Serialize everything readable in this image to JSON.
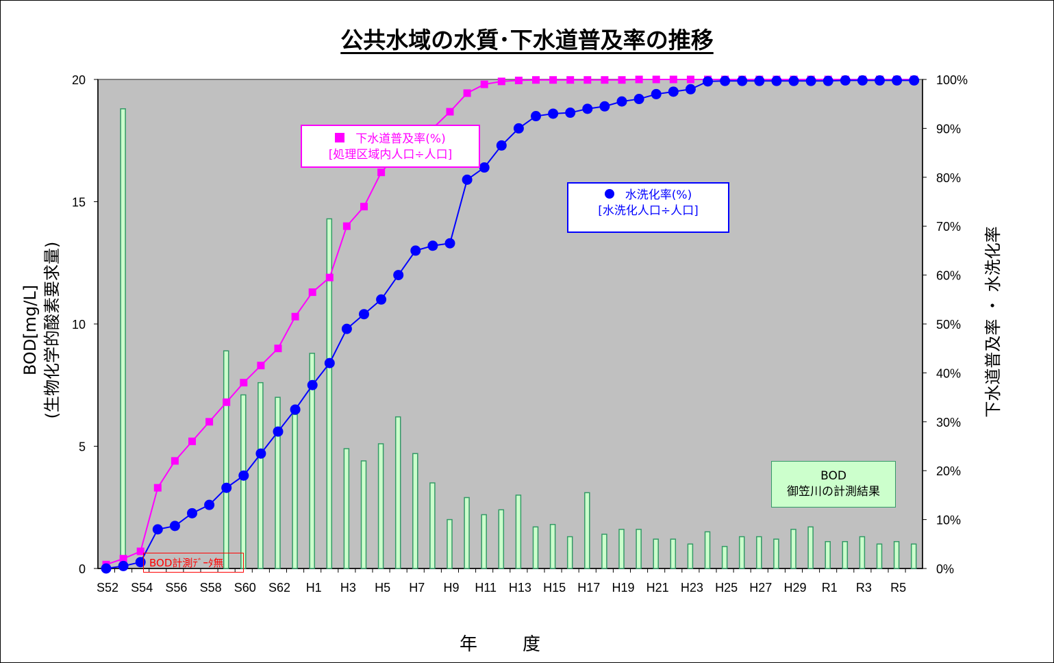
{
  "chart_data": {
    "type": "bar+line",
    "title": "公共水域の水質･下水道普及率の推移",
    "xlabel": "年　度",
    "ylabel_left": [
      "BOD[mg/L]",
      "(生物化学的酸素要求量)"
    ],
    "ylabel_right": "下水道普及率 ・ 水洗化率",
    "ylim_left": [
      0,
      20
    ],
    "ylim_right": [
      0,
      100
    ],
    "left_ticks": [
      "0",
      "5",
      "10",
      "15",
      "20"
    ],
    "right_ticks": [
      "0%",
      "10%",
      "20%",
      "30%",
      "40%",
      "50%",
      "60%",
      "70%",
      "80%",
      "90%",
      "100%"
    ],
    "categories": [
      "S52",
      "S53",
      "S54",
      "S55",
      "S56",
      "S57",
      "S58",
      "S59",
      "S60",
      "S61",
      "S62",
      "S63",
      "H1",
      "H2",
      "H3",
      "H4",
      "H5",
      "H6",
      "H7",
      "H8",
      "H9",
      "H10",
      "H11",
      "H12",
      "H13",
      "H14",
      "H15",
      "H16",
      "H17",
      "H18",
      "H19",
      "H20",
      "H21",
      "H22",
      "H23",
      "H24",
      "H25",
      "H26",
      "H27",
      "H28",
      "H29",
      "H30",
      "R1",
      "R2",
      "R3",
      "R4",
      "R5",
      "R6"
    ],
    "x_tick_labels": [
      "S52",
      "S54",
      "S56",
      "S58",
      "S60",
      "S62",
      "H1",
      "H3",
      "H5",
      "H7",
      "H9",
      "H11",
      "H13",
      "H15",
      "H17",
      "H19",
      "H21",
      "H23",
      "H25",
      "H27",
      "H29",
      "R1",
      "R3",
      "R5"
    ],
    "series": [
      {
        "name": "BOD 御笠川の計測結果",
        "type": "bar",
        "axis": "left",
        "color": "#ccffcc",
        "edge": "#339966",
        "values": [
          null,
          18.8,
          null,
          null,
          null,
          null,
          null,
          8.9,
          7.1,
          7.6,
          7.0,
          6.3,
          8.8,
          14.3,
          4.9,
          4.4,
          5.1,
          6.2,
          4.7,
          3.5,
          2.0,
          2.9,
          2.2,
          2.4,
          3.0,
          1.7,
          1.8,
          1.3,
          3.1,
          1.4,
          1.6,
          1.6,
          1.2,
          1.2,
          1.0,
          1.5,
          0.9,
          1.3,
          1.3,
          1.2,
          1.6,
          1.7,
          1.1,
          1.1,
          1.3,
          1.0,
          1.1,
          1.0
        ]
      },
      {
        "name": "下水道普及率(%)",
        "type": "line",
        "axis": "right",
        "color": "#ff00ff",
        "marker": "square",
        "values": [
          0.8,
          2.0,
          3.5,
          16.5,
          22,
          26,
          30,
          34,
          38,
          41.5,
          45,
          51.5,
          56.5,
          59.5,
          70,
          74,
          81,
          85,
          87.5,
          90,
          93.4,
          97.2,
          99,
          99.6,
          99.8,
          99.9,
          99.9,
          99.9,
          99.9,
          99.9,
          99.9,
          100,
          100,
          100,
          100,
          100,
          100,
          100,
          100,
          100,
          100,
          100,
          100,
          100,
          100,
          100,
          100,
          100
        ]
      },
      {
        "name": "水洗化率(%)",
        "type": "line",
        "axis": "right",
        "color": "#0000ff",
        "marker": "circle",
        "values": [
          0,
          0.5,
          1.3,
          8,
          8.7,
          11.3,
          13,
          16.5,
          19,
          23.5,
          28,
          32.5,
          37.5,
          42,
          49,
          52,
          55,
          60,
          65,
          66,
          66.5,
          79.5,
          82,
          86.5,
          90,
          92.5,
          93,
          93.2,
          94,
          94.5,
          95.5,
          96,
          97,
          97.5,
          98,
          99.6,
          99.7,
          99.7,
          99.7,
          99.7,
          99.7,
          99.7,
          99.7,
          99.8,
          99.8,
          99.8,
          99.8,
          99.8
        ]
      }
    ],
    "grid": false,
    "plot_background": "#c0c0c0"
  },
  "legend": {
    "sewer_line1": "下水道普及率(%)",
    "sewer_line2": "[処理区域内人口÷人口]",
    "flush_line1": "水洗化率(%)",
    "flush_line2": "[水洗化人口÷人口]",
    "bod_line1": "BOD",
    "bod_line2": "御笠川の計測結果"
  },
  "annotation": "BOD計測ﾃﾞｰﾀ無"
}
